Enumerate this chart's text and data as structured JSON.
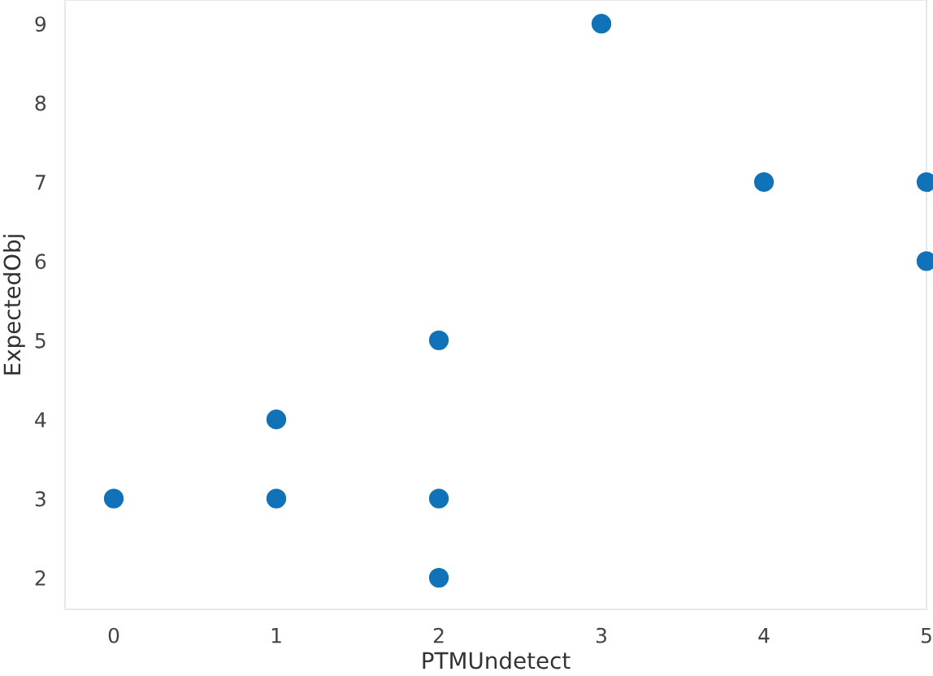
{
  "chart_data": {
    "type": "scatter",
    "xlabel": "PTMUndetect",
    "ylabel": "ExpectedObj",
    "x": [
      0,
      1,
      1,
      2,
      2,
      2,
      3,
      4,
      5,
      5
    ],
    "series": [
      {
        "color": "#1072b8",
        "values": [
          3,
          4,
          3,
          5,
          3,
          2,
          9,
          7,
          7,
          6
        ]
      }
    ],
    "xlim": [
      -0.3,
      5
    ],
    "xticks": [
      0,
      1,
      2,
      3,
      4,
      5
    ],
    "ylim": [
      1.6,
      9.3
    ],
    "yticks": [
      2,
      3,
      4,
      5,
      6,
      7,
      8,
      9
    ],
    "grid": false,
    "marker": "circle"
  }
}
